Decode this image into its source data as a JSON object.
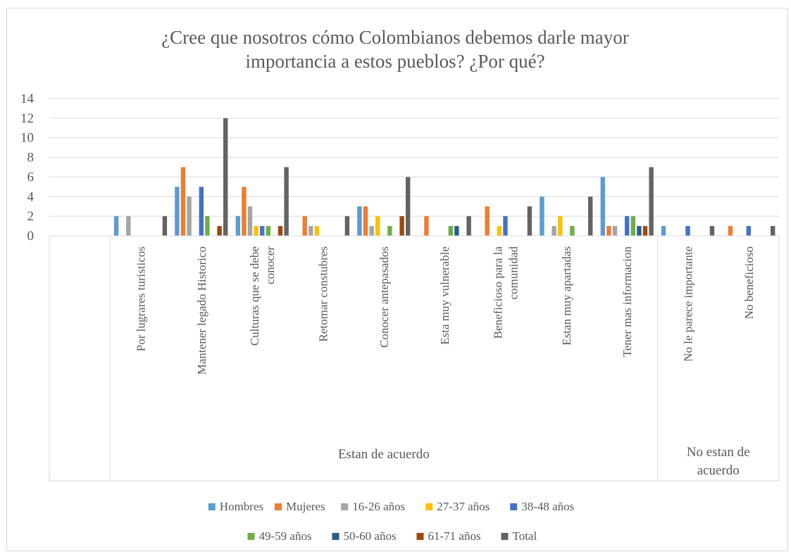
{
  "chart_data": {
    "type": "bar",
    "title": "¿Cree que nosotros cómo Colombianos debemos darle mayor importancia a estos pueblos? ¿Por qué?",
    "title_lines": [
      "¿Cree que nosotros cómo Colombianos debemos darle mayor",
      "importancia a estos pueblos? ¿Por qué?"
    ],
    "ylim": [
      0,
      14
    ],
    "yticks": [
      0,
      2,
      4,
      6,
      8,
      10,
      12,
      14
    ],
    "grid": true,
    "legend_position": "bottom",
    "groups": [
      {
        "label_lines": [
          "Estan de acuerdo"
        ],
        "span": [
          0,
          8
        ]
      },
      {
        "label_lines": [
          "No estan de",
          "acuerdo"
        ],
        "span": [
          9,
          10
        ]
      }
    ],
    "categories": [
      "Por lugrares turisticos",
      "Mantener legado Historico",
      "Culturas que se debe conocer",
      "Retomar constubres",
      "Conocer antepasados",
      "Esta muy vulnerable",
      "Beneficioso para la comunidad",
      "Estan muy apartadas",
      "Tener mas informacion",
      "No le parece importante",
      "No beneficioso"
    ],
    "category_label_lines": [
      [
        "Por lugrares turisticos"
      ],
      [
        "Mantener legado Historico"
      ],
      [
        "Culturas que se debe",
        "conocer"
      ],
      [
        "Retomar constubres"
      ],
      [
        "Conocer antepasados"
      ],
      [
        "Esta muy vulnerable"
      ],
      [
        "Beneficioso para la",
        "comunidad"
      ],
      [
        "Estan muy apartadas"
      ],
      [
        "Tener mas informacion"
      ],
      [
        "No le parece importante"
      ],
      [
        "No beneficioso"
      ]
    ],
    "series": [
      {
        "name": "Hombres",
        "color": "#5B9BD5",
        "values": [
          2,
          5,
          2,
          0,
          3,
          0,
          0,
          4,
          6,
          1,
          0
        ]
      },
      {
        "name": "Mujeres",
        "color": "#ED7D31",
        "values": [
          0,
          7,
          5,
          2,
          3,
          2,
          3,
          0,
          1,
          0,
          1
        ]
      },
      {
        "name": "16-26 años",
        "color": "#A5A5A5",
        "values": [
          2,
          4,
          3,
          1,
          1,
          0,
          0,
          1,
          1,
          0,
          0
        ]
      },
      {
        "name": "27-37 años",
        "color": "#FFC000",
        "values": [
          0,
          0,
          1,
          1,
          2,
          0,
          1,
          2,
          0,
          0,
          0
        ]
      },
      {
        "name": "38-48 años",
        "color": "#4472C4",
        "values": [
          0,
          5,
          1,
          0,
          0,
          0,
          2,
          0,
          2,
          1,
          1
        ]
      },
      {
        "name": "49-59 años",
        "color": "#70AD47",
        "values": [
          0,
          2,
          1,
          0,
          1,
          1,
          0,
          1,
          2,
          0,
          0
        ]
      },
      {
        "name": "50-60 años",
        "color": "#255E91",
        "values": [
          0,
          0,
          0,
          0,
          0,
          1,
          0,
          0,
          1,
          0,
          0
        ]
      },
      {
        "name": "61-71 años",
        "color": "#9E480E",
        "values": [
          0,
          1,
          1,
          0,
          2,
          0,
          0,
          0,
          1,
          0,
          0
        ]
      },
      {
        "name": "Total",
        "color": "#636363",
        "values": [
          2,
          12,
          7,
          2,
          6,
          2,
          3,
          4,
          7,
          1,
          1
        ]
      }
    ]
  }
}
